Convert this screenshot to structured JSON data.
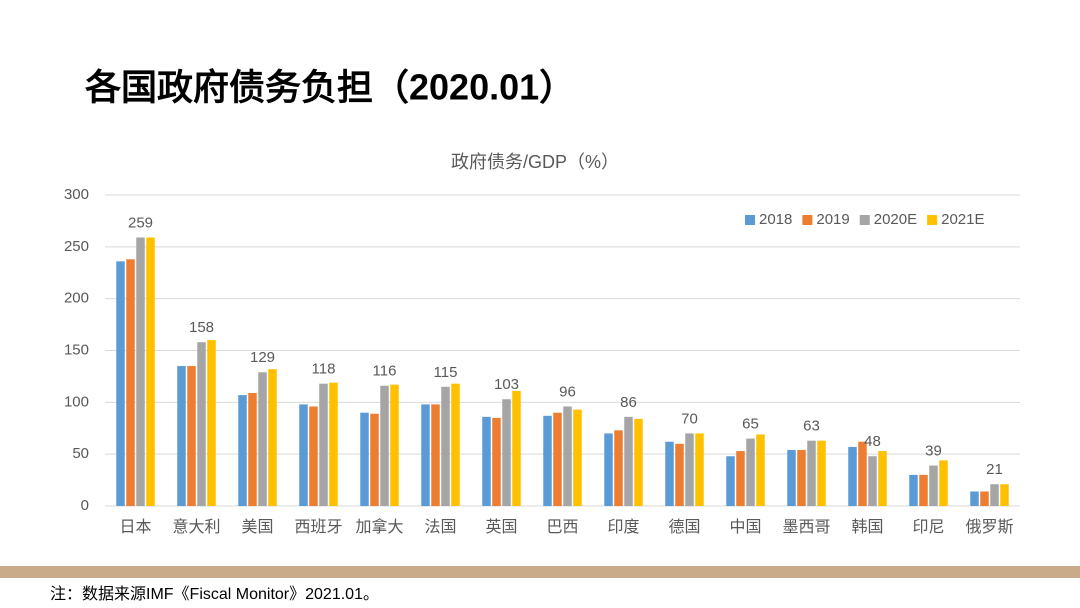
{
  "slide_title": "各国政府债务负担（2020.01）",
  "footnote": "注：数据来源IMF《Fiscal Monitor》2021.01。",
  "chart_data": {
    "type": "bar",
    "title": "政府债务/GDP（%）",
    "categories": [
      "日本",
      "意大利",
      "美国",
      "西班牙",
      "加拿大",
      "法国",
      "英国",
      "巴西",
      "印度",
      "德国",
      "中国",
      "墨西哥",
      "韩国",
      "印尼",
      "俄罗斯"
    ],
    "series": [
      {
        "name": "2018",
        "color": "#5b9bd5",
        "values": [
          236,
          135,
          107,
          98,
          90,
          98,
          86,
          87,
          70,
          62,
          48,
          54,
          57,
          30,
          14
        ]
      },
      {
        "name": "2019",
        "color": "#ed7d31",
        "values": [
          238,
          135,
          109,
          96,
          89,
          98,
          85,
          90,
          73,
          60,
          53,
          54,
          62,
          30,
          14
        ]
      },
      {
        "name": "2020E",
        "color": "#a5a5a5",
        "values": [
          259,
          158,
          129,
          118,
          116,
          115,
          103,
          96,
          86,
          70,
          65,
          63,
          48,
          39,
          21
        ]
      },
      {
        "name": "2021E",
        "color": "#ffc000",
        "values": [
          259,
          160,
          132,
          119,
          117,
          118,
          111,
          93,
          84,
          70,
          69,
          63,
          53,
          44,
          21
        ]
      }
    ],
    "labeled_series": "2020E",
    "ylim": [
      0,
      300
    ],
    "yticks": [
      0,
      50,
      100,
      150,
      200,
      250,
      300
    ],
    "grid": true,
    "legend": "top-right"
  }
}
